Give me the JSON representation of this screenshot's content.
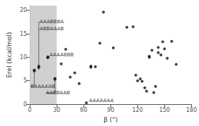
{
  "chart_data": {
    "type": "scatter",
    "xlabel": "β (°)",
    "ylabel": "Erel (kcal/mol)",
    "xlim": [
      0,
      180
    ],
    "ylim": [
      0,
      21
    ],
    "xticks": [
      0,
      30,
      60,
      90,
      120,
      150,
      180
    ],
    "yticks": [
      0,
      5,
      10,
      15,
      20
    ],
    "grid": false,
    "color": "#111111",
    "points": [
      [
        5,
        7.1
      ],
      [
        5,
        7.3
      ],
      [
        10,
        7.8
      ],
      [
        10,
        8.1
      ],
      [
        20,
        9.9
      ],
      [
        20,
        10.1
      ],
      [
        28,
        5.3
      ],
      [
        28,
        5.5
      ],
      [
        35,
        8.6
      ],
      [
        40,
        11.7
      ],
      [
        45,
        5.8
      ],
      [
        50,
        6.7
      ],
      [
        55,
        4.4
      ],
      [
        63,
        0.3
      ],
      [
        68,
        8.1
      ],
      [
        68,
        7.9
      ],
      [
        73,
        8.0
      ],
      [
        78,
        13.0
      ],
      [
        82,
        19.6
      ],
      [
        93,
        12.0
      ],
      [
        108,
        16.4
      ],
      [
        115,
        16.5
      ],
      [
        118,
        6.2
      ],
      [
        120,
        5.0
      ],
      [
        123,
        5.4
      ],
      [
        125,
        4.9
      ],
      [
        128,
        3.5
      ],
      [
        130,
        2.8
      ],
      [
        133,
        10.0
      ],
      [
        133,
        10.2
      ],
      [
        136,
        11.5
      ],
      [
        138,
        2.5
      ],
      [
        140,
        3.8
      ],
      [
        143,
        11.0
      ],
      [
        143,
        12.1
      ],
      [
        146,
        10.5
      ],
      [
        148,
        13.3
      ],
      [
        150,
        11.8
      ],
      [
        153,
        9.8
      ],
      [
        158,
        13.4
      ],
      [
        163,
        8.5
      ]
    ],
    "shaded_region": {
      "x": [
        0,
        30
      ],
      "color": "#d0d0d0"
    },
    "line_color": "#666666",
    "lines": [
      [
        [
          10,
          7.3
        ],
        [
          10,
          17.5
        ]
      ],
      [
        [
          10,
          17.5
        ],
        [
          11,
          17.5
        ]
      ],
      [
        [
          10,
          16.0
        ],
        [
          11,
          16.0
        ]
      ],
      [
        [
          20,
          9.9
        ],
        [
          20,
          10.1
        ]
      ],
      [
        [
          20,
          10.1
        ],
        [
          22,
          10.1
        ]
      ],
      [
        [
          20,
          9.9
        ],
        [
          22,
          9.9
        ]
      ],
      [
        [
          5,
          5.3
        ],
        [
          5,
          7.3
        ]
      ],
      [
        [
          1,
          3.8
        ],
        [
          5,
          3.8
        ]
      ],
      [
        [
          5,
          3.8
        ],
        [
          5,
          5.3
        ]
      ],
      [
        [
          28,
          2.4
        ],
        [
          28,
          5.3
        ]
      ],
      [
        [
          18,
          2.4
        ],
        [
          28,
          2.4
        ]
      ]
    ],
    "annotations": [
      {
        "text": "AAABBBA",
        "x": 11,
        "y": 17.5
      },
      {
        "text": "ABBAAAB",
        "x": 11,
        "y": 16.0
      },
      {
        "text": "AAAABBB",
        "x": 22,
        "y": 10.5
      },
      {
        "text": "BAAAAAB",
        "x": 1,
        "y": 3.8
      },
      {
        "text": "AABBAAB",
        "x": 18,
        "y": 2.4
      },
      {
        "text": "AAAAAAA",
        "x": 66,
        "y": 0.8
      }
    ]
  }
}
